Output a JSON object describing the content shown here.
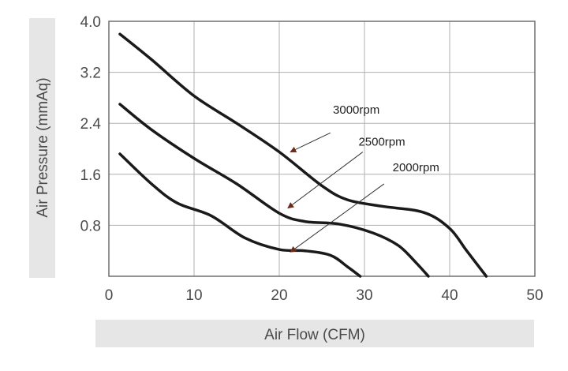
{
  "chart_data": {
    "type": "line",
    "xlabel": "Air Flow (CFM)",
    "ylabel": "Air Pressure (mmAq)",
    "xlim": [
      0,
      50
    ],
    "ylim": [
      0,
      4.0
    ],
    "x_ticks": [
      "0",
      "10",
      "20",
      "30",
      "40",
      "50"
    ],
    "y_ticks": [
      "0.8",
      "1.6",
      "2.4",
      "3.2",
      "4.0"
    ],
    "grid": true,
    "colors": {
      "curve": "#1a1a1a",
      "grid": "#b0b0b0",
      "label_box": "#e6e6e6",
      "arrow_head": "#6b2a1a"
    },
    "series": [
      {
        "name": "3000rpm",
        "points": [
          [
            1.3,
            3.8
          ],
          [
            5,
            3.4
          ],
          [
            10,
            2.83
          ],
          [
            15,
            2.4
          ],
          [
            20,
            1.95
          ],
          [
            25,
            1.42
          ],
          [
            28,
            1.2
          ],
          [
            32,
            1.1
          ],
          [
            37,
            1.0
          ],
          [
            40,
            0.75
          ],
          [
            42,
            0.4
          ],
          [
            44.3,
            0
          ]
        ]
      },
      {
        "name": "2500rpm",
        "points": [
          [
            1.3,
            2.7
          ],
          [
            5,
            2.3
          ],
          [
            10,
            1.85
          ],
          [
            15,
            1.45
          ],
          [
            20,
            0.99
          ],
          [
            23,
            0.86
          ],
          [
            27,
            0.82
          ],
          [
            31,
            0.68
          ],
          [
            34,
            0.48
          ],
          [
            36,
            0.22
          ],
          [
            37.5,
            0
          ]
        ]
      },
      {
        "name": "2000rpm",
        "points": [
          [
            1.3,
            1.92
          ],
          [
            5,
            1.45
          ],
          [
            8,
            1.15
          ],
          [
            12,
            0.95
          ],
          [
            16,
            0.6
          ],
          [
            20,
            0.42
          ],
          [
            23,
            0.4
          ],
          [
            26,
            0.33
          ],
          [
            28,
            0.15
          ],
          [
            29.5,
            0
          ]
        ]
      }
    ],
    "annotations": [
      {
        "text": "3000rpm",
        "label_at": [
          26.3,
          2.55
        ],
        "arrow_from": [
          26.0,
          2.25
        ],
        "arrow_to": [
          21.3,
          1.95
        ]
      },
      {
        "text": "2500rpm",
        "label_at": [
          29.3,
          2.05
        ],
        "arrow_from": [
          29.8,
          1.95
        ],
        "arrow_to": [
          21.0,
          1.07
        ]
      },
      {
        "text": "2000rpm",
        "label_at": [
          33.3,
          1.65
        ],
        "arrow_from": [
          32.3,
          1.45
        ],
        "arrow_to": [
          21.3,
          0.38
        ]
      }
    ]
  }
}
